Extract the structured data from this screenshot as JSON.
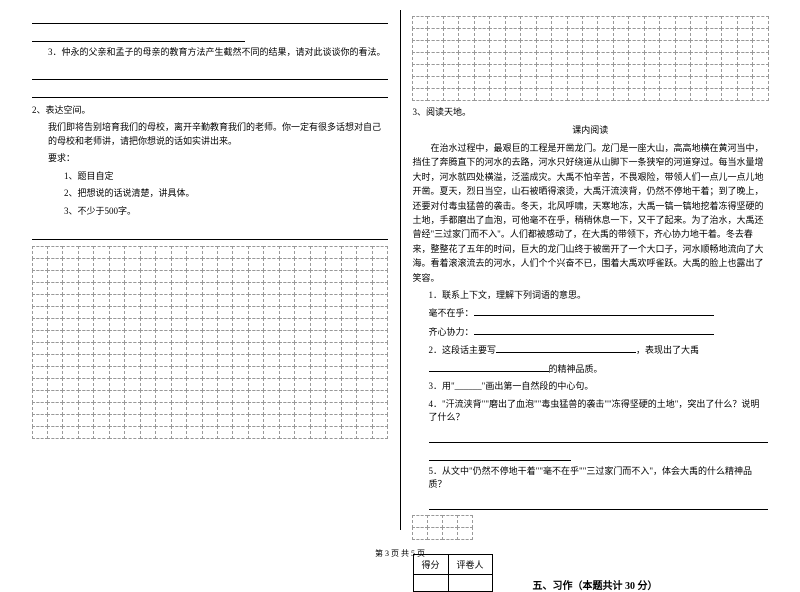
{
  "leftCol": {
    "q3": "3．仲永的父亲和孟子的母亲的教育方法产生截然不同的结果，请对此谈谈你的看法。",
    "section2_title": "2、表达空间。",
    "section2_body": "我们即将告别培育我们的母校，离开辛勤教育我们的老师。你一定有很多话想对自己的母校和老师讲，请把你想说的话如实讲出来。",
    "requirements_label": "要求：",
    "req1": "1、题目自定",
    "req2": "2、把想说的话说清楚，讲具体。",
    "req3": "3、不少于500字。"
  },
  "rightCol": {
    "section3_title": "3、阅读天地。",
    "reading_title": "课内阅读",
    "passage": "在治水过程中，最艰巨的工程是开凿龙门。龙门是一座大山，高高地横在黄河当中，挡住了奔腾直下的河水的去路，河水只好绕道从山脚下一条狭窄的河道穿过。每当水量增大时，河水就四处横溢，泛滥成灾。大禹不怕辛苦，不畏艰险，带领人们一点儿一点儿地开凿。夏天，烈日当空，山石被晒得滚烫，大禹汗流浃背，仍然不停地干着；到了晚上，还要对付毒虫猛兽的袭击。冬天，北风呼啸，天寒地冻，大禹一镐一镐地挖着冻得坚硬的土地，手都磨出了血泡，可他毫不在乎，稍稍休息一下，又干了起来。为了治水，大禹还曾经\"三过家门而不入\"。人们都被感动了，在大禹的带领下，齐心协力地干着。冬去春来，整整花了五年的时间，巨大的龙门山终于被凿开了一个大口子，河水顺畅地流向了大海。看着滚滚流去的河水，人们个个兴奋不已，围着大禹欢呼雀跃。大禹的脸上也露出了笑容。",
    "q1_label": "1．联系上下文，理解下列词语的意思。",
    "q1_word1": "毫不在乎：",
    "q1_word2": "齐心协力：",
    "q2_label": "2．这段话主要写",
    "q2_suffix": "，表现出了大禹",
    "q2_end": "的精神品质。",
    "q3_label": "3．用\"______\"画出第一自然段的中心句。",
    "q4_label": "4．\"汗流浃背\"\"磨出了血泡\"\"毒虫猛兽的袭击\"\"冻得坚硬的土地\"，突出了什么？说明了什么？",
    "q5_label": "5．从文中\"仍然不停地干着\"\"毫不在乎\"\"三过家门而不入\"，体会大禹的什么精神品质？",
    "score_label1": "得分",
    "score_label2": "评卷人",
    "section5_title": "五、习作（本题共计 30 分）"
  },
  "footer": "第 3 页 共 5 页",
  "grids": {
    "topRight": {
      "rows": 7,
      "cols": 23
    },
    "bottomLeft": {
      "rows": 16,
      "cols": 23
    },
    "bottomRight": {
      "rows": 2,
      "cols": 4
    }
  }
}
